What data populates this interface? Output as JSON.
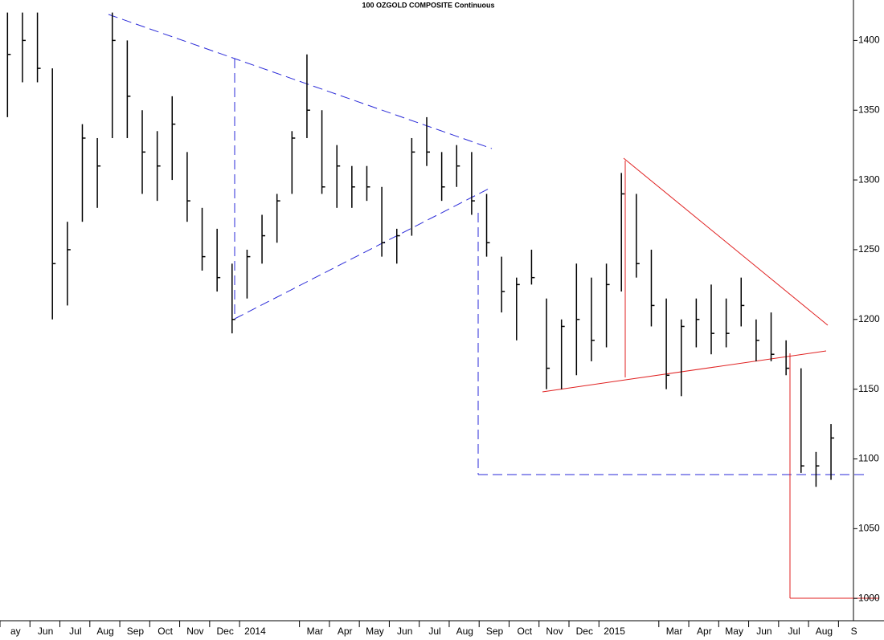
{
  "chart_data": {
    "type": "ohlc",
    "title": "100 OZGOLD COMPOSITE Continuous",
    "categories": [
      "ay",
      null,
      "Jun",
      null,
      "Jul",
      null,
      "Aug",
      null,
      "Sep",
      null,
      "Oct",
      null,
      "Nov",
      null,
      "Dec",
      null,
      "2014",
      null,
      null,
      null,
      "Mar",
      null,
      "Apr",
      null,
      "May",
      null,
      "Jun",
      null,
      "Jul",
      null,
      "Aug",
      null,
      "Sep",
      null,
      "Oct",
      null,
      "Nov",
      null,
      "Dec",
      null,
      "2015",
      null,
      null,
      null,
      "Mar",
      null,
      "Apr",
      null,
      "May",
      null,
      "Jun",
      null,
      "Jul",
      null,
      "Aug",
      null,
      "S"
    ],
    "series": [
      {
        "name": "High",
        "color": "#000000",
        "values": [
          1420,
          1420,
          1420,
          1380,
          1270,
          1340,
          1330,
          1420,
          1400,
          1350,
          1335,
          1360,
          1320,
          1280,
          1265,
          1240,
          1250,
          1275,
          1290,
          1335,
          1390,
          1350,
          1325,
          1310,
          1310,
          1295,
          1265,
          1330,
          1345,
          1320,
          1325,
          1320,
          1290,
          1245,
          1230,
          1250,
          1215,
          1200,
          1240,
          1230,
          1240,
          1305,
          1290,
          1250,
          1215,
          1200,
          1215,
          1225,
          1215,
          1230,
          1200,
          1205,
          1185,
          1165,
          1105,
          1125,
          null
        ]
      },
      {
        "name": "Low",
        "color": "#000000",
        "values": [
          1345,
          1370,
          1370,
          1200,
          1210,
          1270,
          1280,
          1330,
          1330,
          1290,
          1285,
          1300,
          1270,
          1235,
          1220,
          1190,
          1215,
          1240,
          1255,
          1290,
          1330,
          1290,
          1280,
          1280,
          1285,
          1245,
          1240,
          1260,
          1310,
          1285,
          1295,
          1275,
          1245,
          1205,
          1185,
          1225,
          1150,
          1150,
          1160,
          1170,
          1180,
          1220,
          1230,
          1195,
          1150,
          1145,
          1180,
          1175,
          1180,
          1195,
          1170,
          1170,
          1160,
          1090,
          1080,
          1085,
          null
        ]
      },
      {
        "name": "Close",
        "color": "#000000",
        "values": [
          1390,
          1400,
          1380,
          1240,
          1250,
          1330,
          1310,
          1400,
          1360,
          1320,
          1310,
          1340,
          1285,
          1245,
          1230,
          1200,
          1245,
          1260,
          1285,
          1330,
          1350,
          1295,
          1310,
          1295,
          1295,
          1255,
          1260,
          1320,
          1320,
          1295,
          1310,
          1285,
          1255,
          1220,
          1225,
          1230,
          1165,
          1195,
          1200,
          1185,
          1225,
          1290,
          1240,
          1210,
          1160,
          1195,
          1200,
          1190,
          1190,
          1210,
          1185,
          1175,
          1165,
          1095,
          1095,
          1115,
          null
        ]
      }
    ],
    "ylim": [
      984,
      1429
    ],
    "yticks": [
      1000,
      1050,
      1100,
      1150,
      1200,
      1250,
      1300,
      1350,
      1400
    ]
  }
}
